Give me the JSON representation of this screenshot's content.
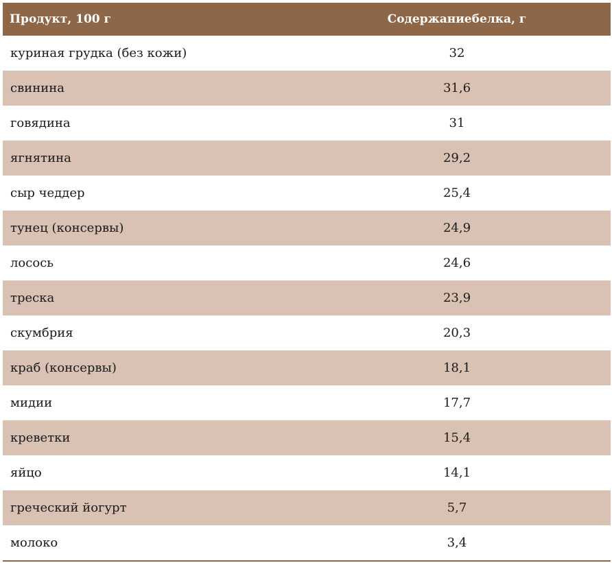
{
  "table": {
    "headers": {
      "product": "Продукт, 100 г",
      "protein": "Содержаниебелка, г"
    },
    "rows": [
      {
        "product": "куриная грудка (без кожи)",
        "protein": "32"
      },
      {
        "product": "свинина",
        "protein": "31,6"
      },
      {
        "product": "говядина",
        "protein": "31"
      },
      {
        "product": "ягнятина",
        "protein": "29,2"
      },
      {
        "product": "сыр чеддер",
        "protein": "25,4"
      },
      {
        "product": "тунец (консервы)",
        "protein": "24,9"
      },
      {
        "product": "лосось",
        "protein": "24,6"
      },
      {
        "product": "треска",
        "protein": "23,9"
      },
      {
        "product": "скумбрия",
        "protein": "20,3"
      },
      {
        "product": "краб (консервы)",
        "protein": "18,1"
      },
      {
        "product": "мидии",
        "protein": "17,7"
      },
      {
        "product": "креветки",
        "protein": "15,4"
      },
      {
        "product": "яйцо",
        "protein": "14,1"
      },
      {
        "product": "греческий йогурт",
        "protein": "5,7"
      },
      {
        "product": "молоко",
        "protein": "3,4"
      }
    ]
  },
  "colors": {
    "header_bg": "#8e6749",
    "header_text": "#ffffff",
    "stripe_bg": "#d9c2b4",
    "row_bg": "#ffffff"
  }
}
